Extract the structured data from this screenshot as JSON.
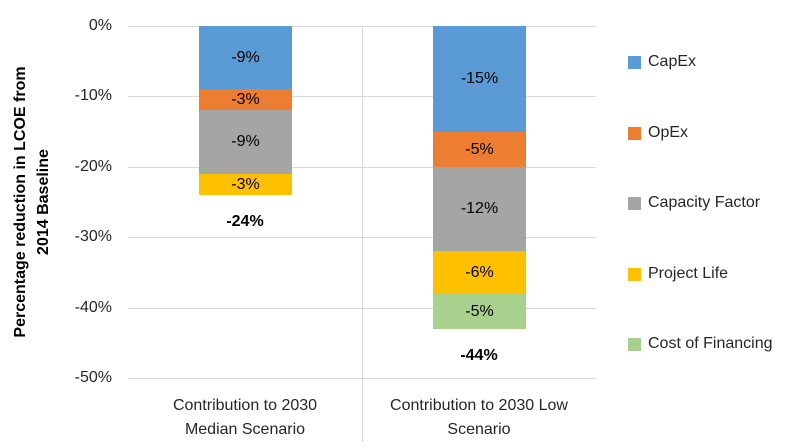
{
  "chart_data": {
    "type": "bar",
    "stacked": true,
    "orientation": "vertical",
    "title": "",
    "ylabel": "Percentage reduction in LCOE from 2014 Baseline",
    "ylabel_lines": [
      "Percentage reduction in LCOE from",
      "2014 Baseline"
    ],
    "y_ticks": [
      "0%",
      "-10%",
      "-20%",
      "-30%",
      "-40%",
      "-50%"
    ],
    "ylim": [
      0,
      -50
    ],
    "grid": true,
    "legend_position": "right",
    "gridline_color": "#d9d9d9",
    "categories": [
      {
        "label": "Contribution to 2030 Median Scenario",
        "lines": [
          "Contribution to 2030",
          "Median Scenario"
        ],
        "total_label": "-24%",
        "total_value": -24
      },
      {
        "label": "Contribution to 2030 Low Scenario",
        "lines": [
          "Contribution to 2030 Low",
          "Scenario"
        ],
        "total_label": "-44%",
        "total_value": -44
      }
    ],
    "series": [
      {
        "name": "CapEx",
        "color": "#5B9BD5",
        "values": [
          -9,
          -15
        ],
        "labels": [
          "-9%",
          "-15%"
        ]
      },
      {
        "name": "OpEx",
        "color": "#ED7D31",
        "values": [
          -3,
          -5
        ],
        "labels": [
          "-3%",
          "-5%"
        ]
      },
      {
        "name": "Capacity Factor",
        "color": "#A5A5A5",
        "values": [
          -9,
          -12
        ],
        "labels": [
          "-9%",
          "-12%"
        ]
      },
      {
        "name": "Project Life",
        "color": "#FFC000",
        "values": [
          -3,
          -6
        ],
        "labels": [
          "-3%",
          "-6%"
        ]
      },
      {
        "name": "Cost of Financing",
        "color": "#A9D18E",
        "values": [
          null,
          -5
        ],
        "labels": [
          null,
          "-5%"
        ]
      }
    ]
  }
}
